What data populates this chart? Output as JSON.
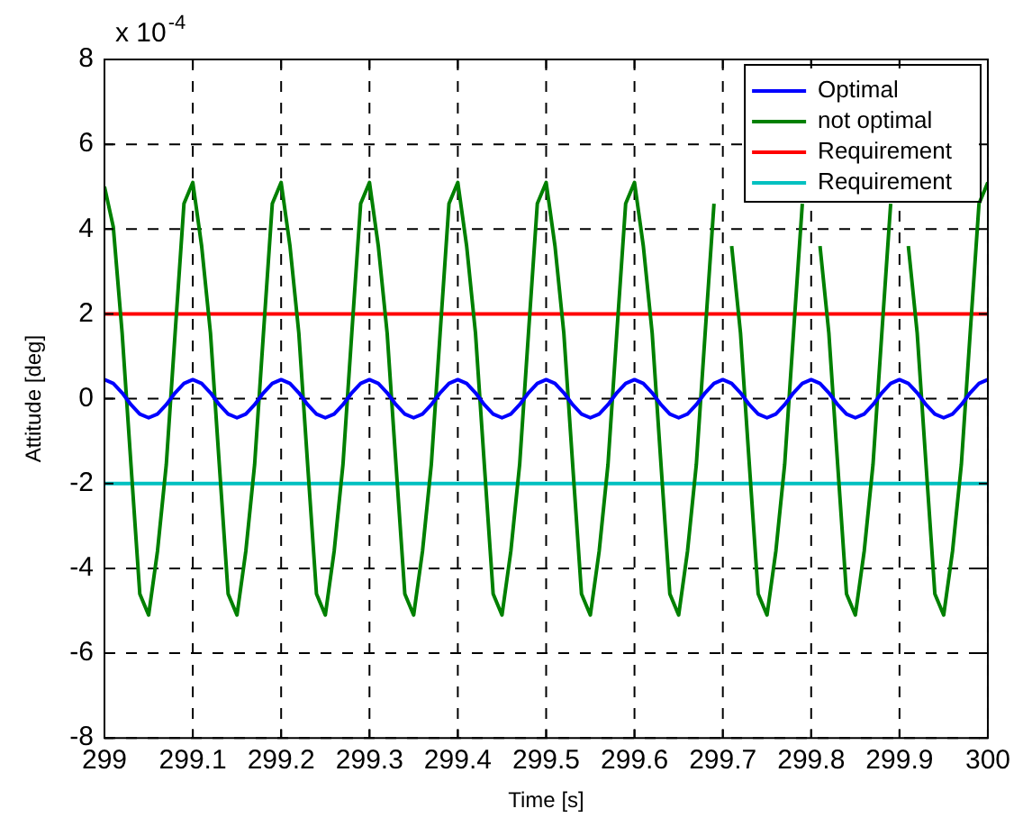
{
  "chart_data": {
    "type": "line",
    "xlabel": "Time [s]",
    "ylabel": "Attitude [deg]",
    "annotations": [
      "x 10$^{-4}$"
    ],
    "x": [
      299,
      299.01,
      299.02,
      299.03,
      299.04,
      299.05,
      299.06,
      299.07,
      299.08,
      299.09,
      299.1,
      299.11,
      299.12,
      299.13,
      299.14,
      299.15,
      299.16,
      299.17,
      299.18,
      299.19,
      299.2,
      299.21,
      299.22,
      299.23,
      299.24,
      299.25,
      299.26,
      299.27,
      299.28,
      299.29,
      299.3,
      299.31,
      299.32,
      299.33,
      299.34,
      299.35,
      299.36,
      299.37,
      299.38,
      299.39,
      299.4,
      299.41,
      299.42,
      299.43,
      299.44,
      299.45,
      299.46,
      299.47,
      299.48,
      299.49,
      299.5,
      299.51,
      299.52,
      299.53,
      299.54,
      299.55,
      299.56,
      299.57,
      299.58,
      299.59,
      299.6,
      299.61,
      299.62,
      299.63,
      299.64,
      299.65,
      299.66,
      299.67,
      299.68,
      299.69,
      299.7,
      299.71,
      299.72,
      299.73,
      299.74,
      299.75,
      299.76,
      299.77,
      299.78,
      299.79,
      299.8,
      299.81,
      299.82,
      299.83,
      299.84,
      299.85,
      299.86,
      299.87,
      299.88,
      299.89,
      299.9,
      299.91,
      299.92,
      299.93,
      299.94,
      299.95,
      299.96,
      299.97,
      299.98,
      299.99,
      300
    ],
    "series": [
      {
        "name": "Optimal",
        "color": "#0000ff",
        "values": [
          0.45,
          0.36,
          0.14,
          -0.14,
          -0.36,
          -0.45,
          -0.36,
          -0.14,
          0.14,
          0.36,
          0.45,
          0.36,
          0.14,
          -0.14,
          -0.36,
          -0.45,
          -0.36,
          -0.14,
          0.14,
          0.36,
          0.45,
          0.36,
          0.14,
          -0.14,
          -0.36,
          -0.45,
          -0.36,
          -0.14,
          0.14,
          0.36,
          0.45,
          0.36,
          0.14,
          -0.14,
          -0.36,
          -0.45,
          -0.36,
          -0.14,
          0.14,
          0.36,
          0.45,
          0.36,
          0.14,
          -0.14,
          -0.36,
          -0.45,
          -0.36,
          -0.14,
          0.14,
          0.36,
          0.45,
          0.36,
          0.14,
          -0.14,
          -0.36,
          -0.45,
          -0.36,
          -0.14,
          0.14,
          0.36,
          0.45,
          0.36,
          0.14,
          -0.14,
          -0.36,
          -0.45,
          -0.36,
          -0.14,
          0.14,
          0.36,
          0.45,
          0.36,
          0.14,
          -0.14,
          -0.36,
          -0.45,
          -0.36,
          -0.14,
          0.14,
          0.36,
          0.45,
          0.36,
          0.14,
          -0.14,
          -0.36,
          -0.45,
          -0.36,
          -0.14,
          0.14,
          0.36,
          0.45,
          0.36,
          0.14,
          -0.14,
          -0.36,
          -0.45,
          -0.36,
          -0.14,
          0.14,
          0.36,
          0.45
        ]
      },
      {
        "name": "not optimal",
        "color": "#008000",
        "values": [
          5,
          4.05,
          1.55,
          -1.55,
          -4.6,
          -5.1,
          -3.6,
          -1.55,
          1.55,
          4.6,
          5.1,
          3.6,
          1.55,
          -1.55,
          -4.6,
          -5.1,
          -3.6,
          -1.55,
          1.55,
          4.6,
          5.1,
          3.6,
          1.55,
          -1.55,
          -4.6,
          -5.1,
          -3.6,
          -1.55,
          1.55,
          4.6,
          5.1,
          3.6,
          1.55,
          -1.55,
          -4.6,
          -5.1,
          -3.6,
          -1.55,
          1.55,
          4.6,
          5.1,
          3.6,
          1.55,
          -1.55,
          -4.6,
          -5.1,
          -3.6,
          -1.55,
          1.55,
          4.6,
          5.1,
          3.6,
          1.55,
          -1.55,
          -4.6,
          -5.1,
          -3.6,
          -1.55,
          1.55,
          4.6,
          5.1,
          3.6,
          1.55,
          -1.55,
          -4.6,
          -5.1,
          -3.6,
          -1.55,
          1.55,
          4.6,
          null,
          3.6,
          1.55,
          -1.55,
          -4.6,
          -5.1,
          -3.6,
          -1.55,
          1.55,
          4.6,
          null,
          3.6,
          1.55,
          -1.55,
          -4.6,
          -5.1,
          -3.6,
          -1.55,
          1.55,
          4.6,
          null,
          3.6,
          1.55,
          -1.55,
          -4.6,
          -5.1,
          -3.6,
          -1.55,
          1.55,
          4.6,
          5.1
        ]
      },
      {
        "name": "Requirement",
        "color": "#ff0000",
        "values": [
          2,
          2,
          2,
          2,
          2,
          2,
          2,
          2,
          2,
          2,
          2,
          2,
          2,
          2,
          2,
          2,
          2,
          2,
          2,
          2,
          2,
          2,
          2,
          2,
          2,
          2,
          2,
          2,
          2,
          2,
          2,
          2,
          2,
          2,
          2,
          2,
          2,
          2,
          2,
          2,
          2,
          2,
          2,
          2,
          2,
          2,
          2,
          2,
          2,
          2,
          2,
          2,
          2,
          2,
          2,
          2,
          2,
          2,
          2,
          2,
          2,
          2,
          2,
          2,
          2,
          2,
          2,
          2,
          2,
          2,
          2,
          2,
          2,
          2,
          2,
          2,
          2,
          2,
          2,
          2,
          2,
          2,
          2,
          2,
          2,
          2,
          2,
          2,
          2,
          2,
          2,
          2,
          2,
          2,
          2,
          2,
          2,
          2,
          2,
          2,
          2
        ]
      },
      {
        "name": "Requirement",
        "color": "#00c0c0",
        "values": [
          -2,
          -2,
          -2,
          -2,
          -2,
          -2,
          -2,
          -2,
          -2,
          -2,
          -2,
          -2,
          -2,
          -2,
          -2,
          -2,
          -2,
          -2,
          -2,
          -2,
          -2,
          -2,
          -2,
          -2,
          -2,
          -2,
          -2,
          -2,
          -2,
          -2,
          -2,
          -2,
          -2,
          -2,
          -2,
          -2,
          -2,
          -2,
          -2,
          -2,
          -2,
          -2,
          -2,
          -2,
          -2,
          -2,
          -2,
          -2,
          -2,
          -2,
          -2,
          -2,
          -2,
          -2,
          -2,
          -2,
          -2,
          -2,
          -2,
          -2,
          -2,
          -2,
          -2,
          -2,
          -2,
          -2,
          -2,
          -2,
          -2,
          -2,
          -2,
          -2,
          -2,
          -2,
          -2,
          -2,
          -2,
          -2,
          -2,
          -2,
          -2,
          -2,
          -2,
          -2,
          -2,
          -2,
          -2,
          -2,
          -2,
          -2,
          -2,
          -2,
          -2,
          -2,
          -2,
          -2,
          -2,
          -2,
          -2,
          -2,
          -2
        ]
      }
    ],
    "xlim": [
      299,
      300
    ],
    "xticks": [
      299,
      299.1,
      299.2,
      299.3,
      299.4,
      299.5,
      299.6,
      299.7,
      299.8,
      299.9,
      300
    ],
    "ylim": [
      -8,
      8
    ],
    "yticks": [
      -8,
      -6,
      -4,
      -2,
      0,
      2,
      4,
      6,
      8
    ],
    "grid": true,
    "legend": "top right",
    "marker": "none",
    "line_style": "solid"
  }
}
